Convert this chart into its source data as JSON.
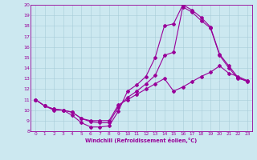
{
  "xlabel": "Windchill (Refroidissement éolien,°C)",
  "xlim": [
    -0.5,
    23.5
  ],
  "ylim": [
    8,
    20
  ],
  "xticks": [
    0,
    1,
    2,
    3,
    4,
    5,
    6,
    7,
    8,
    9,
    10,
    11,
    12,
    13,
    14,
    15,
    16,
    17,
    18,
    19,
    20,
    21,
    22,
    23
  ],
  "yticks": [
    8,
    9,
    10,
    11,
    12,
    13,
    14,
    15,
    16,
    17,
    18,
    19,
    20
  ],
  "bg_color": "#cce8f0",
  "line_color": "#990099",
  "line1_x": [
    0,
    1,
    2,
    3,
    4,
    5,
    6,
    7,
    8,
    9,
    10,
    11,
    12,
    13,
    14,
    15,
    16,
    17,
    18,
    19,
    20,
    21,
    22,
    23
  ],
  "line1_y": [
    11,
    10.4,
    10,
    10,
    9.5,
    8.8,
    8.4,
    8.4,
    8.5,
    9.9,
    11.8,
    12.4,
    13.2,
    15.0,
    18.0,
    18.2,
    20.0,
    19.5,
    18.8,
    17.9,
    15.3,
    14.2,
    13.1,
    12.7
  ],
  "line2_x": [
    0,
    1,
    2,
    3,
    4,
    5,
    6,
    7,
    8,
    9,
    10,
    11,
    12,
    13,
    14,
    15,
    16,
    17,
    18,
    19,
    20,
    21,
    22,
    23
  ],
  "line2_y": [
    11,
    10.4,
    10.1,
    10.0,
    9.8,
    9.2,
    8.9,
    8.8,
    8.8,
    10.3,
    11.2,
    11.8,
    12.5,
    13.3,
    15.2,
    15.5,
    19.8,
    19.3,
    18.5,
    17.8,
    15.2,
    14.0,
    13.0,
    12.8
  ],
  "line3_x": [
    0,
    1,
    2,
    3,
    4,
    5,
    6,
    7,
    8,
    9,
    10,
    11,
    12,
    13,
    14,
    15,
    16,
    17,
    18,
    19,
    20,
    21,
    22,
    23
  ],
  "line3_y": [
    11,
    10.4,
    10.1,
    10.0,
    9.8,
    9.2,
    9.0,
    9.0,
    9.0,
    10.5,
    11.0,
    11.5,
    12.0,
    12.5,
    13.0,
    11.8,
    12.2,
    12.7,
    13.2,
    13.6,
    14.2,
    13.5,
    13.2,
    12.8
  ]
}
